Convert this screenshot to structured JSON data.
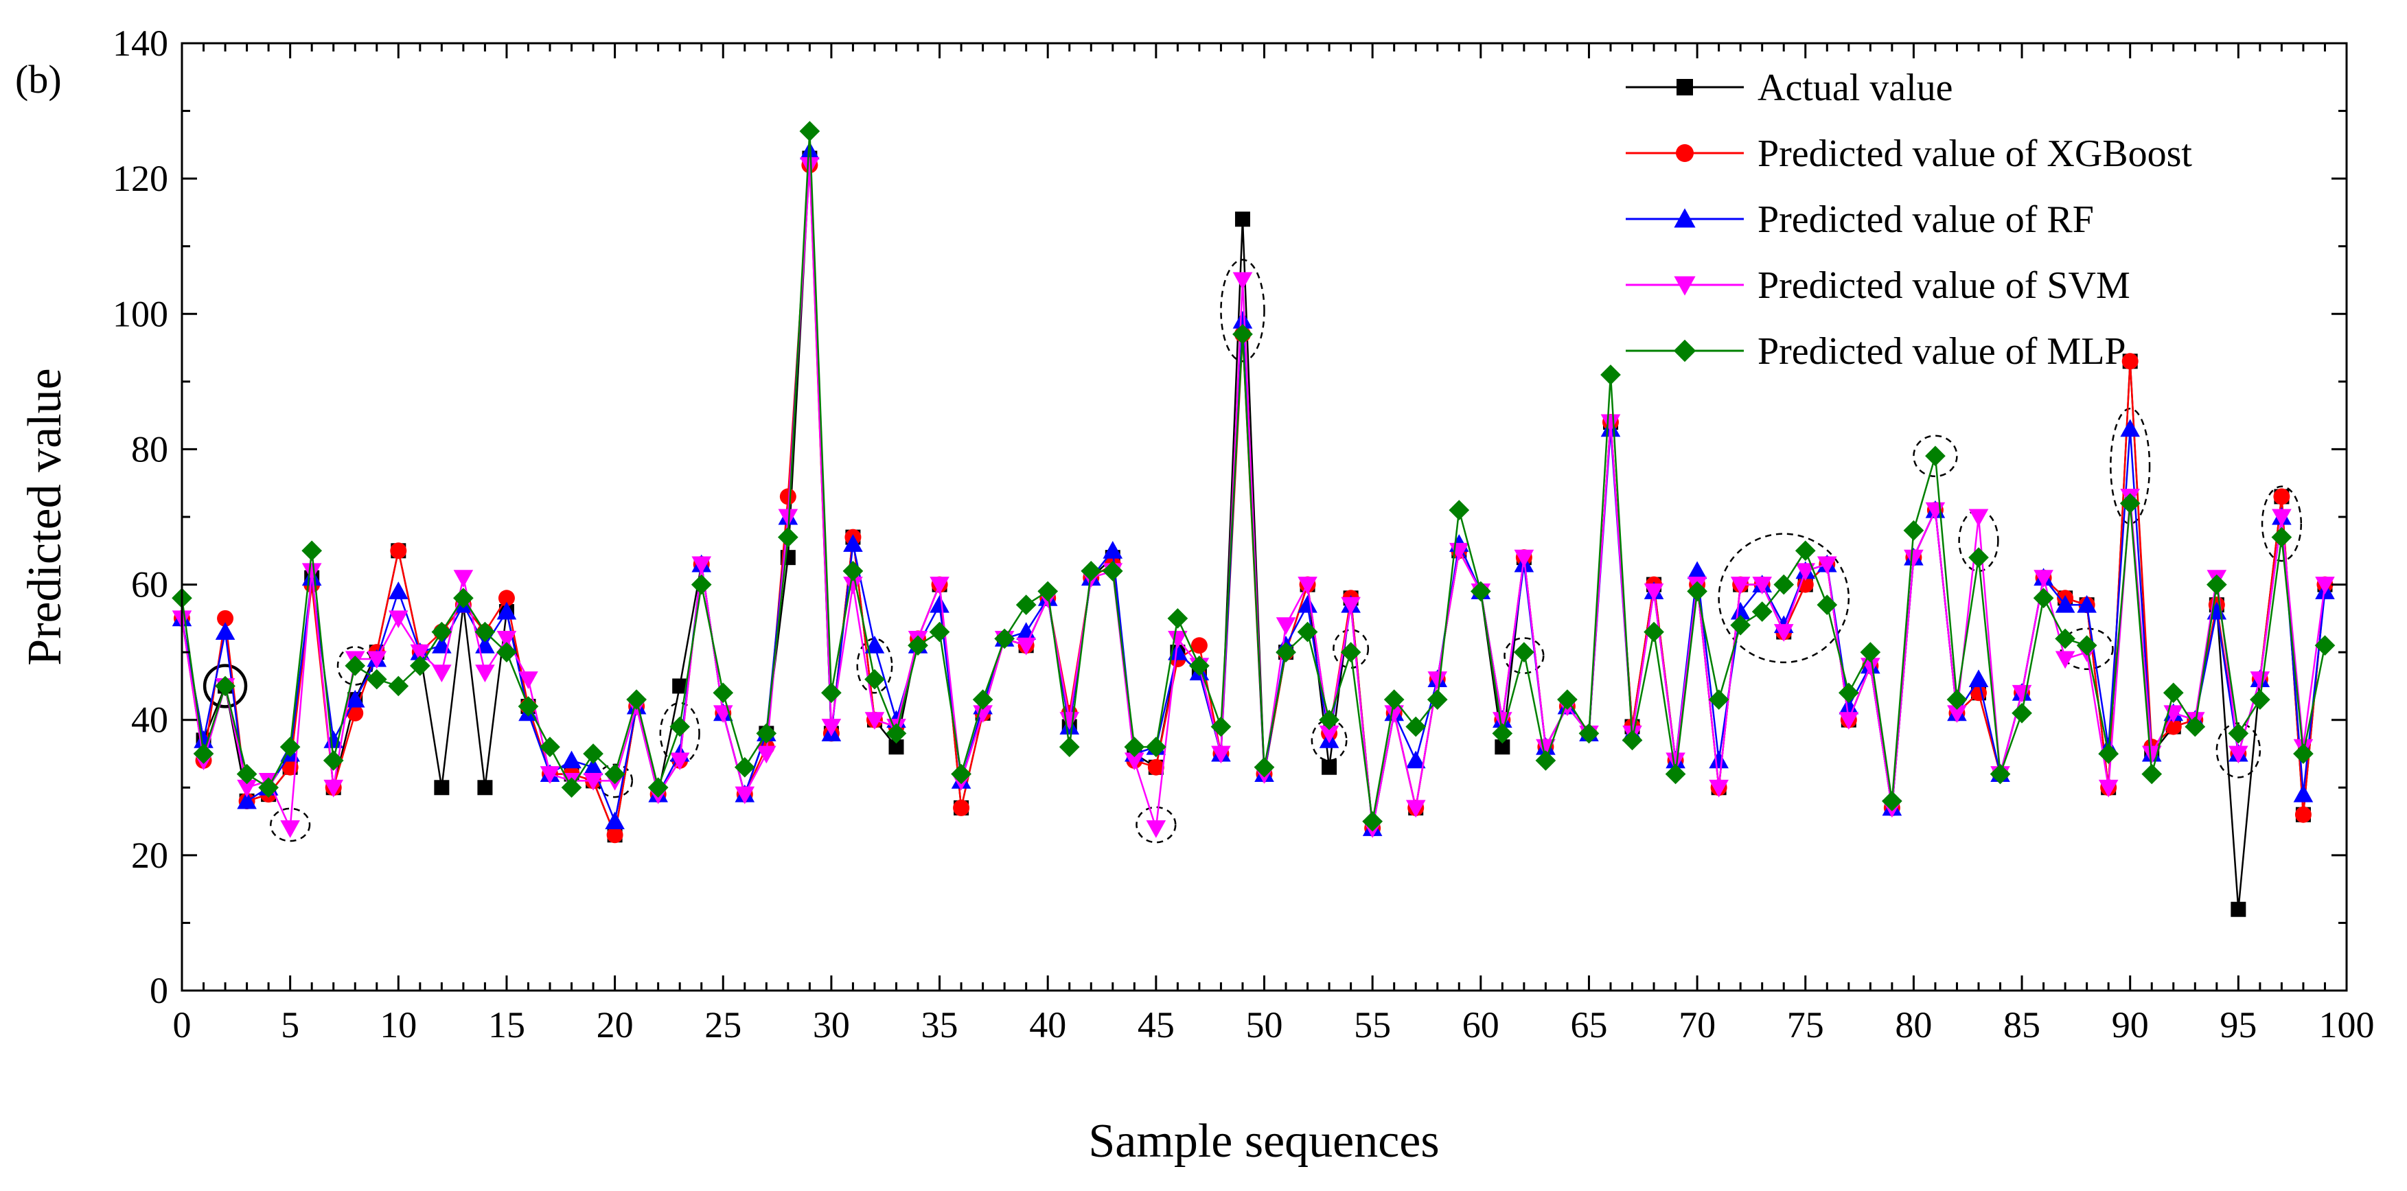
{
  "chart_data": {
    "type": "line",
    "panel_label": "(b)",
    "title": "",
    "xlabel": "Sample sequences",
    "ylabel": "Predicted value",
    "xlim": [
      0,
      100
    ],
    "ylim": [
      0,
      140
    ],
    "x_ticks": [
      0,
      5,
      10,
      15,
      20,
      25,
      30,
      35,
      40,
      45,
      50,
      55,
      60,
      65,
      70,
      75,
      80,
      85,
      90,
      95,
      100
    ],
    "y_ticks": [
      0,
      20,
      40,
      60,
      80,
      100,
      120,
      140
    ],
    "legend_position": "top-right",
    "colors": {
      "axis": "#000000",
      "actual": "#000000",
      "xgboost": "#ff0000",
      "rf": "#0000ff",
      "svm": "#ff00ff",
      "mlp": "#008000"
    },
    "series": [
      {
        "key": "actual",
        "name": "Actual value",
        "marker": "square",
        "values": [
          55,
          37,
          45,
          28,
          29,
          33,
          61,
          30,
          43,
          50,
          65,
          50,
          30,
          57,
          30,
          56,
          42,
          32,
          32,
          31,
          23,
          42,
          29,
          45,
          63,
          41,
          29,
          38,
          64,
          123,
          38,
          67,
          40,
          36,
          52,
          60,
          27,
          41,
          52,
          51,
          58,
          39,
          61,
          64,
          35,
          33,
          50,
          47,
          35,
          114,
          32,
          50,
          60,
          33,
          58,
          24,
          41,
          27,
          46,
          65,
          59,
          36,
          64,
          36,
          42,
          38,
          84,
          39,
          60,
          34,
          60,
          30,
          60,
          60,
          53,
          60,
          63,
          40,
          48,
          27,
          64,
          71,
          41,
          44,
          32,
          44,
          61,
          58,
          57,
          30,
          93,
          35,
          39,
          40,
          57,
          12,
          46,
          73,
          26,
          60
        ]
      },
      {
        "key": "xgboost",
        "name": "Predicted value of XGBoost",
        "marker": "circle",
        "values": [
          55,
          34,
          55,
          28,
          29,
          33,
          60,
          30,
          41,
          50,
          65,
          50,
          53,
          57,
          53,
          58,
          42,
          32,
          32,
          31,
          23,
          42,
          29,
          34,
          63,
          41,
          29,
          36,
          73,
          122,
          38,
          67,
          40,
          39,
          52,
          60,
          27,
          41,
          52,
          51,
          58,
          41,
          61,
          63,
          34,
          33,
          49,
          51,
          35,
          97,
          32,
          50,
          60,
          38,
          58,
          24,
          41,
          27,
          46,
          65,
          59,
          40,
          64,
          36,
          42,
          38,
          84,
          39,
          60,
          34,
          60,
          30,
          60,
          60,
          53,
          60,
          63,
          40,
          48,
          27,
          64,
          71,
          41,
          44,
          32,
          44,
          61,
          58,
          57,
          30,
          93,
          36,
          39,
          40,
          57,
          35,
          46,
          73,
          26,
          60
        ]
      },
      {
        "key": "rf",
        "name": "Predicted value of RF",
        "marker": "triangle-up",
        "values": [
          55,
          37,
          53,
          28,
          30,
          35,
          61,
          37,
          43,
          49,
          59,
          50,
          51,
          57,
          51,
          56,
          41,
          32,
          34,
          33,
          25,
          42,
          29,
          35,
          63,
          41,
          29,
          38,
          70,
          124,
          38,
          66,
          51,
          40,
          51,
          57,
          31,
          42,
          52,
          53,
          58,
          39,
          61,
          65,
          35,
          36,
          50,
          47,
          35,
          99,
          32,
          51,
          57,
          37,
          57,
          24,
          41,
          34,
          46,
          66,
          59,
          40,
          63,
          36,
          42,
          38,
          83,
          38,
          59,
          34,
          62,
          34,
          56,
          60,
          54,
          62,
          63,
          42,
          48,
          27,
          64,
          71,
          41,
          46,
          32,
          44,
          61,
          57,
          57,
          36,
          83,
          35,
          41,
          40,
          56,
          35,
          46,
          70,
          29,
          59
        ]
      },
      {
        "key": "svm",
        "name": "Predicted value of SVM",
        "marker": "triangle-down",
        "values": [
          55,
          34,
          45,
          30,
          31,
          24,
          62,
          30,
          49,
          49,
          55,
          50,
          47,
          61,
          47,
          52,
          46,
          32,
          31,
          31,
          31,
          42,
          29,
          34,
          63,
          41,
          29,
          35,
          70,
          122,
          39,
          60,
          40,
          39,
          52,
          60,
          31,
          41,
          52,
          51,
          58,
          40,
          61,
          62,
          34,
          24,
          52,
          48,
          35,
          105,
          32,
          54,
          60,
          38,
          57,
          24,
          41,
          27,
          46,
          65,
          59,
          40,
          64,
          36,
          42,
          38,
          84,
          38,
          59,
          34,
          60,
          30,
          60,
          60,
          53,
          62,
          63,
          40,
          48,
          27,
          64,
          71,
          41,
          70,
          32,
          44,
          61,
          49,
          50,
          30,
          73,
          35,
          41,
          40,
          61,
          35,
          46,
          70,
          36,
          60
        ]
      },
      {
        "key": "mlp",
        "name": "Predicted value of MLP",
        "marker": "diamond",
        "values": [
          58,
          35,
          45,
          32,
          30,
          36,
          65,
          34,
          48,
          46,
          45,
          48,
          53,
          58,
          53,
          50,
          42,
          36,
          30,
          35,
          32,
          43,
          30,
          39,
          60,
          44,
          33,
          38,
          67,
          127,
          44,
          62,
          46,
          38,
          51,
          53,
          32,
          43,
          52,
          57,
          59,
          36,
          62,
          62,
          36,
          36,
          55,
          48,
          39,
          97,
          33,
          50,
          53,
          40,
          50,
          25,
          43,
          39,
          43,
          71,
          59,
          38,
          50,
          34,
          43,
          38,
          91,
          37,
          53,
          32,
          59,
          43,
          54,
          56,
          60,
          65,
          57,
          44,
          50,
          28,
          68,
          79,
          43,
          64,
          32,
          41,
          58,
          52,
          51,
          35,
          72,
          32,
          44,
          39,
          60,
          38,
          43,
          67,
          35,
          51
        ]
      }
    ]
  }
}
